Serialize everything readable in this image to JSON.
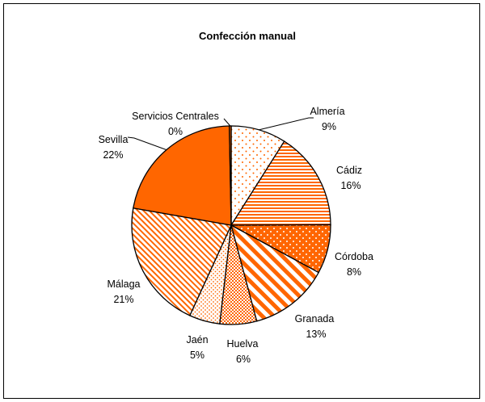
{
  "chart_data": {
    "type": "pie",
    "title": "Confección manual",
    "slices": [
      {
        "key": "almeria",
        "label": "Almería",
        "pct_label": "9%",
        "value": 9,
        "pattern": "dots-sparse"
      },
      {
        "key": "cadiz",
        "label": "Cádiz",
        "pct_label": "16%",
        "value": 16,
        "pattern": "hlines"
      },
      {
        "key": "cordoba",
        "label": "Córdoba",
        "pct_label": "8%",
        "value": 8,
        "pattern": "solid-dots"
      },
      {
        "key": "granada",
        "label": "Granada",
        "pct_label": "13%",
        "value": 13,
        "pattern": "diag-thick"
      },
      {
        "key": "huelva",
        "label": "Huelva",
        "pct_label": "6%",
        "value": 6,
        "pattern": "checker"
      },
      {
        "key": "jaen",
        "label": "Jaén",
        "pct_label": "5%",
        "value": 5,
        "pattern": "dots-dense"
      },
      {
        "key": "malaga",
        "label": "Málaga",
        "pct_label": "21%",
        "value": 21,
        "pattern": "diag-thin"
      },
      {
        "key": "sevilla",
        "label": "Sevilla",
        "pct_label": "22%",
        "value": 22,
        "pattern": "solid"
      },
      {
        "key": "servicios",
        "label": "Servicios Centrales",
        "pct_label": "0%",
        "value": 0.3,
        "pattern": "solid"
      }
    ],
    "colors": {
      "accent": "#ff6600",
      "background": "#ffffff",
      "outline": "#000000"
    }
  }
}
